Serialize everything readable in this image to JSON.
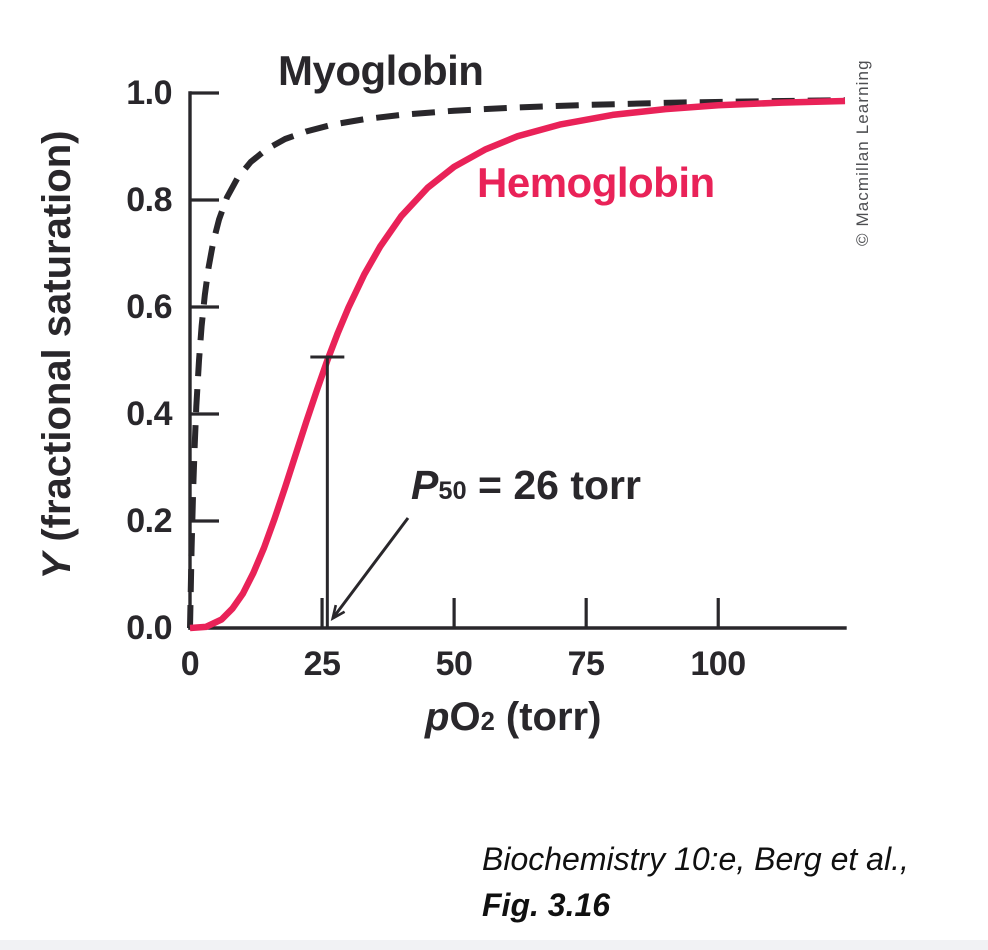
{
  "labels": {
    "myoglobin": "Myoglobin",
    "hemoglobin": "Hemoglobin"
  },
  "annotation": {
    "p": "P",
    "sub": "50",
    "rest": " = 26 torr"
  },
  "axes": {
    "y_title_italic": "Y",
    "y_title_rest": " (fractional saturation)",
    "x_title_p": "p",
    "x_title_main": "O",
    "x_title_sub": "2",
    "x_title_rest": " (torr)",
    "y_tick_labels": [
      "1.0",
      "0.8",
      "0.6",
      "0.4",
      "0.2",
      "0.0"
    ],
    "x_tick_labels": [
      "0",
      "25",
      "50",
      "75",
      "100"
    ]
  },
  "copyright": {
    "text": "© Macmillan Learning"
  },
  "citation": {
    "line1": "Biochemistry 10:e, Berg et al.,",
    "line2": "Fig. 3.16"
  },
  "colors": {
    "ink": "#29272b",
    "hemoglobin_red": "#e92258",
    "copyright_gray": "#4e4f52"
  },
  "chart_data": {
    "type": "line",
    "title": "",
    "xlabel": "pO2 (torr)",
    "ylabel": "Y (fractional saturation)",
    "xlim": [
      0,
      124
    ],
    "ylim": [
      0,
      1.0
    ],
    "x_tick_values": [
      0,
      25,
      50,
      75,
      100
    ],
    "y_tick_values": [
      0,
      0.2,
      0.4,
      0.6,
      0.8,
      1.0
    ],
    "grid": false,
    "legend": "inline-labels",
    "annotations": [
      {
        "text": "P50 = 26 torr",
        "points_to_x": 26,
        "points_to_y": 0
      }
    ],
    "marker": {
      "x": 26,
      "y": 0.5
    },
    "series": [
      {
        "name": "Myoglobin",
        "style": "dashed",
        "color": "#29272b",
        "points": [
          [
            0,
            0
          ],
          [
            0.3,
            0.15
          ],
          [
            0.6,
            0.261
          ],
          [
            0.9,
            0.346
          ],
          [
            1.2,
            0.414
          ],
          [
            1.7,
            0.5
          ],
          [
            2.2,
            0.564
          ],
          [
            2.8,
            0.622
          ],
          [
            3.5,
            0.673
          ],
          [
            4.4,
            0.721
          ],
          [
            5.5,
            0.764
          ],
          [
            7,
            0.805
          ],
          [
            9,
            0.841
          ],
          [
            11.5,
            0.871
          ],
          [
            14.5,
            0.895
          ],
          [
            18,
            0.914
          ],
          [
            22,
            0.928
          ],
          [
            27,
            0.941
          ],
          [
            33,
            0.951
          ],
          [
            40,
            0.959
          ],
          [
            50,
            0.967
          ],
          [
            62,
            0.973
          ],
          [
            76,
            0.978
          ],
          [
            92,
            0.982
          ],
          [
            108,
            0.9845
          ],
          [
            124,
            0.9865
          ]
        ]
      },
      {
        "name": "Hemoglobin",
        "style": "solid",
        "color": "#e92258",
        "points": [
          [
            0,
            0
          ],
          [
            3,
            0.002
          ],
          [
            6,
            0.016
          ],
          [
            8,
            0.036
          ],
          [
            10,
            0.064
          ],
          [
            12,
            0.103
          ],
          [
            14,
            0.15
          ],
          [
            16,
            0.204
          ],
          [
            18,
            0.263
          ],
          [
            20,
            0.324
          ],
          [
            22,
            0.385
          ],
          [
            24,
            0.444
          ],
          [
            26,
            0.5
          ],
          [
            28,
            0.552
          ],
          [
            30,
            0.599
          ],
          [
            33,
            0.661
          ],
          [
            36,
            0.713
          ],
          [
            40,
            0.77
          ],
          [
            45,
            0.823
          ],
          [
            50,
            0.862
          ],
          [
            56,
            0.895
          ],
          [
            62,
            0.919
          ],
          [
            70,
            0.941
          ],
          [
            80,
            0.959
          ],
          [
            90,
            0.97
          ],
          [
            100,
            0.977
          ],
          [
            112,
            0.982
          ],
          [
            124,
            0.985
          ]
        ]
      }
    ]
  }
}
